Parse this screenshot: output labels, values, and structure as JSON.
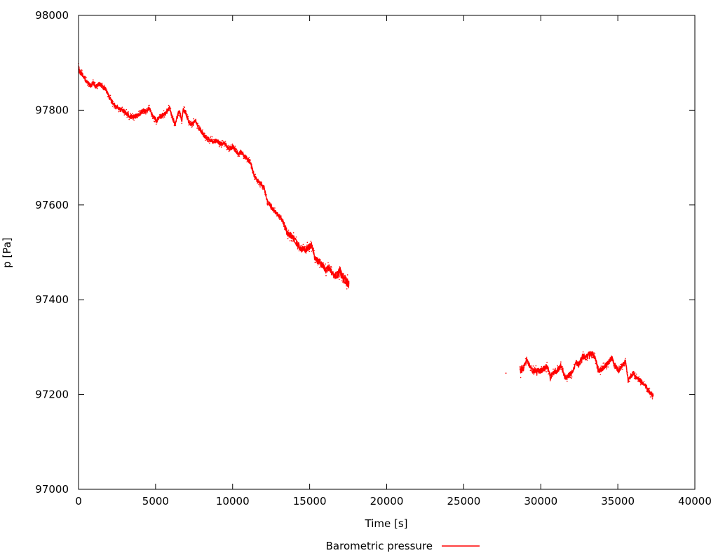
{
  "figure": {
    "background": "#ffffff",
    "text_color": "#000000",
    "border_color": "#000000"
  },
  "chart_data": {
    "type": "scatter",
    "title": "",
    "xlabel": "Time [s]",
    "ylabel": "p [Pa]",
    "xlim": [
      0,
      40000
    ],
    "ylim": [
      97000,
      98000
    ],
    "grid": false,
    "legend_position": "bottom-center",
    "x_ticks": [
      0,
      5000,
      10000,
      15000,
      20000,
      25000,
      30000,
      35000,
      40000
    ],
    "x_tick_labels": [
      "0",
      "5000",
      "10000",
      "15000",
      "20000",
      "25000",
      "30000",
      "35000",
      "40000"
    ],
    "y_ticks": [
      97000,
      97200,
      97400,
      97600,
      97800,
      98000
    ],
    "y_tick_labels": [
      "97000",
      "97200",
      "97400",
      "97600",
      "97800",
      "98000"
    ],
    "series": [
      {
        "name": "Barometric pressure",
        "color": "#ff0000",
        "style": "dots",
        "segments": [
          {
            "keypoints": [
              [
                0,
                97890
              ],
              [
                120,
                97880
              ],
              [
                300,
                97873
              ],
              [
                500,
                97861
              ],
              [
                700,
                97855
              ],
              [
                820,
                97852
              ],
              [
                950,
                97859
              ],
              [
                1100,
                97849
              ],
              [
                1360,
                97856
              ],
              [
                1550,
                97850
              ],
              [
                1730,
                97846
              ],
              [
                1950,
                97830
              ],
              [
                2180,
                97817
              ],
              [
                2400,
                97809
              ],
              [
                2640,
                97804
              ],
              [
                2860,
                97800
              ],
              [
                3090,
                97794
              ],
              [
                3320,
                97787
              ],
              [
                3550,
                97786
              ],
              [
                3780,
                97788
              ],
              [
                4000,
                97794
              ],
              [
                4200,
                97800
              ],
              [
                4400,
                97797
              ],
              [
                4590,
                97805
              ],
              [
                4800,
                97789
              ],
              [
                5050,
                97778
              ],
              [
                5250,
                97786
              ],
              [
                5500,
                97790
              ],
              [
                5700,
                97795
              ],
              [
                5900,
                97805
              ],
              [
                6100,
                97784
              ],
              [
                6270,
                97771
              ],
              [
                6450,
                97792
              ],
              [
                6550,
                97797
              ],
              [
                6700,
                97776
              ],
              [
                6800,
                97802
              ],
              [
                6950,
                97795
              ],
              [
                7100,
                97780
              ],
              [
                7260,
                97768
              ],
              [
                7450,
                97775
              ],
              [
                7600,
                97778
              ],
              [
                7770,
                97763
              ],
              [
                7950,
                97757
              ],
              [
                8090,
                97749
              ],
              [
                8320,
                97741
              ],
              [
                8500,
                97738
              ],
              [
                8680,
                97736
              ],
              [
                9000,
                97735
              ],
              [
                9230,
                97728
              ],
              [
                9380,
                97731
              ],
              [
                9550,
                97727
              ],
              [
                9760,
                97719
              ],
              [
                9950,
                97722
              ],
              [
                10050,
                97723
              ],
              [
                10200,
                97714
              ],
              [
                10360,
                97709
              ],
              [
                10550,
                97712
              ],
              [
                10750,
                97703
              ],
              [
                10950,
                97697
              ],
              [
                11150,
                97690
              ],
              [
                11400,
                97663
              ],
              [
                11600,
                97652
              ],
              [
                11820,
                97645
              ],
              [
                12050,
                97636
              ],
              [
                12270,
                97605
              ],
              [
                12450,
                97600
              ],
              [
                12640,
                97590
              ],
              [
                12860,
                97583
              ],
              [
                13090,
                97575
              ],
              [
                13230,
                97568
              ],
              [
                13420,
                97552
              ],
              [
                13550,
                97541
              ],
              [
                13770,
                97536
              ],
              [
                14000,
                97527
              ],
              [
                14230,
                97516
              ],
              [
                14450,
                97508
              ],
              [
                14700,
                97504
              ],
              [
                14900,
                97511
              ],
              [
                15140,
                97515
              ],
              [
                15360,
                97486
              ],
              [
                15590,
                97481
              ],
              [
                15820,
                97474
              ],
              [
                16050,
                97462
              ],
              [
                16270,
                97468
              ],
              [
                16500,
                97454
              ],
              [
                16730,
                97450
              ],
              [
                16950,
                97461
              ],
              [
                17180,
                97447
              ],
              [
                17400,
                97438
              ],
              [
                17560,
                97433
              ]
            ],
            "noise_profile_pa": [
              [
                0,
                8
              ],
              [
                300,
                4.5
              ],
              [
                13200,
                4.5
              ],
              [
                13500,
                7
              ],
              [
                16600,
                7
              ],
              [
                16900,
                10
              ],
              [
                17560,
                10
              ]
            ]
          },
          {
            "keypoints": [
              [
                28650,
                97262
              ],
              [
                28700,
                97244
              ],
              [
                28760,
                97258
              ],
              [
                28850,
                97252
              ],
              [
                29080,
                97274
              ],
              [
                29250,
                97262
              ],
              [
                29460,
                97250
              ],
              [
                29700,
                97251
              ],
              [
                30000,
                97250
              ],
              [
                30250,
                97256
              ],
              [
                30420,
                97259
              ],
              [
                30630,
                97238
              ],
              [
                30820,
                97244
              ],
              [
                31000,
                97249
              ],
              [
                31200,
                97255
              ],
              [
                31300,
                97262
              ],
              [
                31450,
                97248
              ],
              [
                31600,
                97233
              ],
              [
                31800,
                97240
              ],
              [
                32000,
                97245
              ],
              [
                32300,
                97267
              ],
              [
                32500,
                97264
              ],
              [
                32700,
                97281
              ],
              [
                32900,
                97277
              ],
              [
                33100,
                97284
              ],
              [
                33320,
                97287
              ],
              [
                33500,
                97280
              ],
              [
                33760,
                97249
              ],
              [
                34000,
                97255
              ],
              [
                34200,
                97261
              ],
              [
                34400,
                97268
              ],
              [
                34600,
                97277
              ],
              [
                34800,
                97262
              ],
              [
                35060,
                97250
              ],
              [
                35300,
                97262
              ],
              [
                35510,
                97270
              ],
              [
                35670,
                97230
              ],
              [
                35850,
                97240
              ],
              [
                35970,
                97245
              ],
              [
                36150,
                97238
              ],
              [
                36350,
                97233
              ],
              [
                36580,
                97225
              ],
              [
                36800,
                97218
              ],
              [
                37030,
                97206
              ],
              [
                37260,
                97198
              ],
              [
                37320,
                97196
              ]
            ],
            "noise_profile_pa": [
              [
                28650,
                6
              ],
              [
                37320,
                5
              ]
            ]
          }
        ],
        "stray_points": [
          [
            27740,
            97245
          ]
        ]
      }
    ]
  }
}
